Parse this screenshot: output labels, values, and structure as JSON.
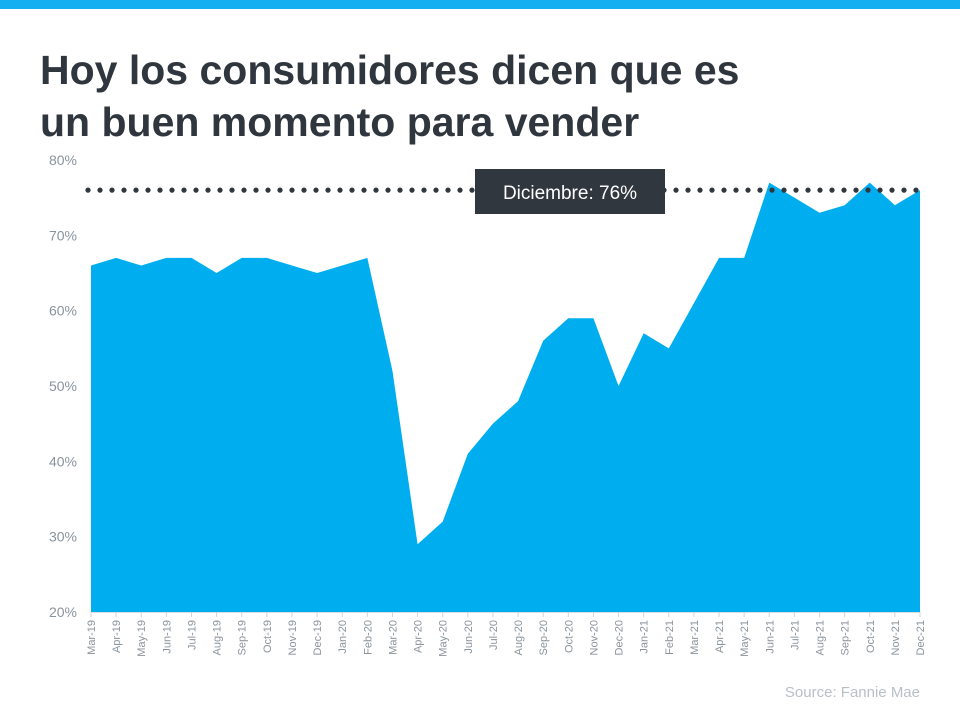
{
  "header": {
    "title_line1": "Hoy los consumidores dicen que es",
    "title_line2": "un buen momento para vender"
  },
  "source": "Source: Fannie Mae",
  "colors": {
    "accent": "#00aeef",
    "topbar": "#13aff0",
    "callout": "#31373e",
    "title": "#30363d"
  },
  "chart_data": {
    "type": "area",
    "title": "Hoy los consumidores dicen que es un buen momento para vender",
    "xlabel": "",
    "ylabel": "",
    "ylim": [
      20,
      80
    ],
    "yticks": [
      "20%",
      "30%",
      "40%",
      "50%",
      "60%",
      "70%",
      "80%"
    ],
    "grid": false,
    "categories": [
      "Mar-19",
      "Apr-19",
      "May-19",
      "Jun-19",
      "Jul-19",
      "Aug-19",
      "Sep-19",
      "Oct-19",
      "Nov-19",
      "Dec-19",
      "Jan-20",
      "Feb-20",
      "Mar-20",
      "Apr-20",
      "May-20",
      "Jun-20",
      "Jul-20",
      "Aug-20",
      "Sep-20",
      "Oct-20",
      "Nov-20",
      "Dec-20",
      "Jan-21",
      "Feb-21",
      "Mar-21",
      "Apr-21",
      "May-21",
      "Jun-21",
      "Jul-21",
      "Aug-21",
      "Sep-21",
      "Oct-21",
      "Nov-21",
      "Dec-21"
    ],
    "values": [
      66,
      67,
      66,
      67,
      67,
      65,
      67,
      67,
      66,
      65,
      66,
      67,
      52,
      29,
      32,
      41,
      45,
      48,
      56,
      59,
      59,
      50,
      57,
      55,
      61,
      67,
      67,
      77,
      75,
      73,
      74,
      77,
      74,
      76
    ],
    "reference_line": {
      "value": 76,
      "style": "dotted"
    },
    "annotation": "Diciembre: 76%"
  }
}
